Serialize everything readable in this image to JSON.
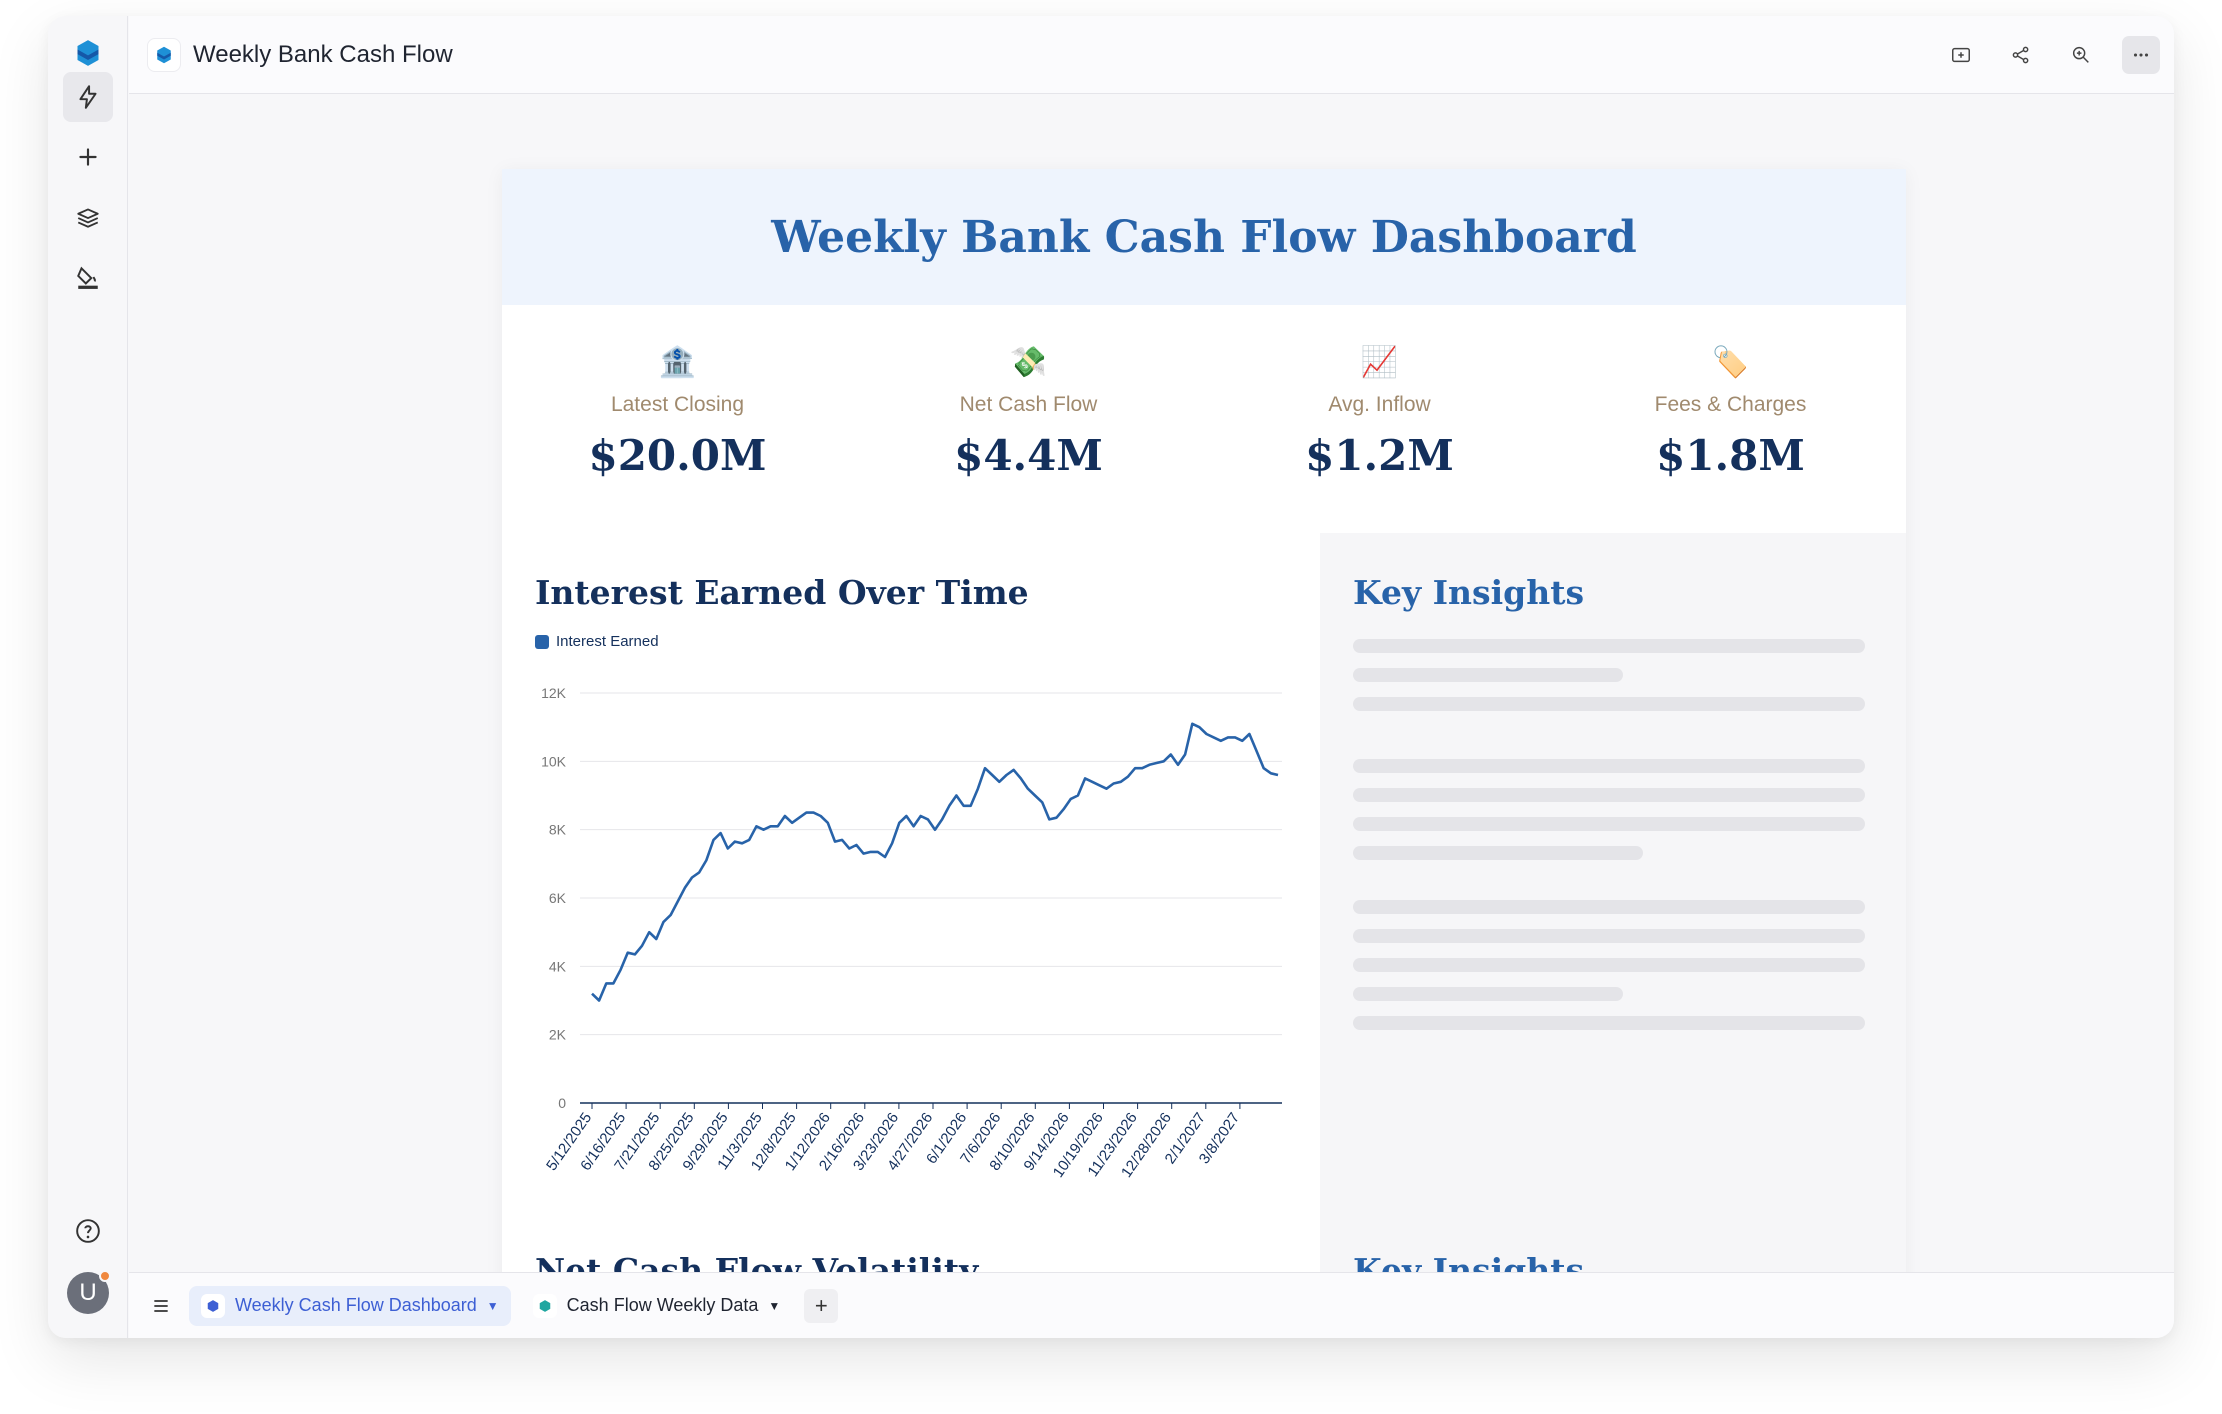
{
  "app": {
    "title": "Weekly Bank Cash Flow",
    "avatar_initial": "U"
  },
  "rail": {
    "items": [
      {
        "name": "bolt-icon"
      },
      {
        "name": "plus-icon"
      },
      {
        "name": "layers-icon"
      },
      {
        "name": "paint-bucket-icon"
      },
      {
        "name": "help-icon"
      }
    ]
  },
  "header_actions": [
    "present-icon",
    "share-icon",
    "zoom-icon",
    "more-icon"
  ],
  "dashboard": {
    "title": "Weekly Bank Cash Flow Dashboard",
    "kpis": [
      {
        "icon": "🏦",
        "label": "Latest Closing",
        "value": "$20.0M"
      },
      {
        "icon": "💸",
        "label": "Net Cash Flow",
        "value": "$4.4M"
      },
      {
        "icon": "📈",
        "label": "Avg. Inflow",
        "value": "$1.2M"
      },
      {
        "icon": "🏷️",
        "label": "Fees & Charges",
        "value": "$1.8M"
      }
    ],
    "chart_section_title": "Interest Earned Over Time",
    "insights_title": "Key Insights",
    "next_chart_title": "Net Cash Flow Volatility",
    "next_insights_title": "Key Insights"
  },
  "chart_data": {
    "type": "line",
    "title": "Interest Earned Over Time",
    "xlabel": "",
    "ylabel": "",
    "ylim": [
      0,
      12000
    ],
    "yticks": [
      "0",
      "2K",
      "4K",
      "6K",
      "8K",
      "10K",
      "12K"
    ],
    "x_tick_labels": [
      "5/12/2025",
      "6/16/2025",
      "7/21/2025",
      "8/25/2025",
      "9/29/2025",
      "11/3/2025",
      "12/8/2025",
      "1/12/2026",
      "2/16/2026",
      "3/23/2026",
      "4/27/2026",
      "6/1/2026",
      "7/6/2026",
      "8/10/2026",
      "9/14/2026",
      "10/19/2026",
      "11/23/2026",
      "12/28/2026",
      "2/1/2027",
      "3/8/2027"
    ],
    "series": [
      {
        "name": "Interest Earned",
        "values": [
          3200,
          3000,
          3500,
          3500,
          3900,
          4400,
          4350,
          4600,
          5000,
          4800,
          5300,
          5500,
          5900,
          6300,
          6600,
          6750,
          7100,
          7700,
          7900,
          7450,
          7650,
          7600,
          7700,
          8100,
          8000,
          8100,
          8100,
          8400,
          8200,
          8350,
          8500,
          8500,
          8400,
          8200,
          7650,
          7700,
          7450,
          7550,
          7300,
          7350,
          7350,
          7200,
          7600,
          8200,
          8400,
          8100,
          8400,
          8300,
          8000,
          8300,
          8700,
          9000,
          8700,
          8700,
          9200,
          9800,
          9600,
          9400,
          9600,
          9750,
          9500,
          9200,
          9000,
          8800,
          8300,
          8350,
          8600,
          8900,
          9000,
          9500,
          9400,
          9300,
          9200,
          9350,
          9400,
          9550,
          9800,
          9800,
          9900,
          9950,
          10000,
          10200,
          9900,
          10200,
          11100,
          11000,
          10800,
          10700,
          10600,
          10700,
          10700,
          10600,
          10800,
          10300,
          9800,
          9650,
          9600
        ]
      }
    ]
  },
  "tabs": {
    "items": [
      {
        "label": "Weekly Cash Flow Dashboard",
        "active": true
      },
      {
        "label": "Cash Flow Weekly Data",
        "active": false
      }
    ]
  }
}
